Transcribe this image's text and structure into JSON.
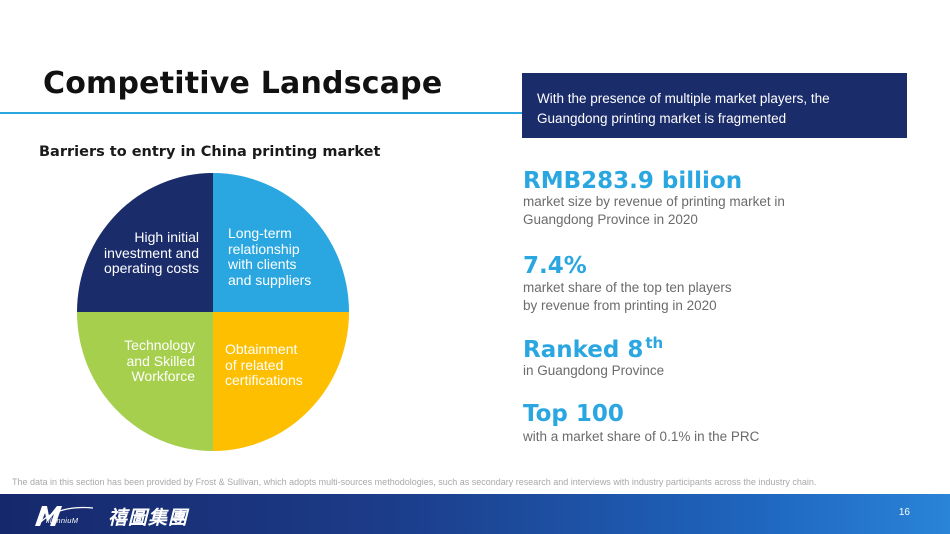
{
  "header": {
    "title": "Competitive Landscape",
    "callout": "With the presence of multiple market players, the Guangdong printing market is fragmented",
    "accent_color": "#2aa7e0",
    "callout_bg": "#1b2c6b"
  },
  "barriers": {
    "heading": "Barriers to entry in China printing market",
    "segments": [
      {
        "label_lines": [
          "High initial",
          "investment and",
          "operating costs"
        ],
        "color": "#1b2c6b"
      },
      {
        "label_lines": [
          "Long-term",
          "relationship",
          "with clients",
          "and suppliers"
        ],
        "color": "#2aa7e0"
      },
      {
        "label_lines": [
          "Technology",
          "and Skilled",
          "Workforce"
        ],
        "color": "#a5cf4c"
      },
      {
        "label_lines": [
          "Obtainment",
          "of related",
          "certifications"
        ],
        "color": "#fdbf00"
      }
    ]
  },
  "stats": [
    {
      "value": "RMB283.9 billion",
      "desc_lines": [
        "market size by revenue of printing market in",
        "Guangdong Province in 2020"
      ]
    },
    {
      "value": "7.4%",
      "desc_lines": [
        "market share of the top ten players",
        "by revenue from printing in 2020"
      ]
    },
    {
      "value": "Ranked 8",
      "sup": "th",
      "desc_lines": [
        "in Guangdong Province"
      ]
    },
    {
      "value": "Top 100",
      "desc_lines": [
        "with a market share of 0.1% in the PRC"
      ]
    }
  ],
  "source_note": "The data in this section has been provided by Frost & Sullivan, which adopts multi-sources methodologies, such as secondary research and interviews with industry participants across the industry chain.",
  "footer": {
    "logo_mark_text": "illenniuM",
    "logo_cn": "禧圖集團",
    "page_number": "16"
  }
}
